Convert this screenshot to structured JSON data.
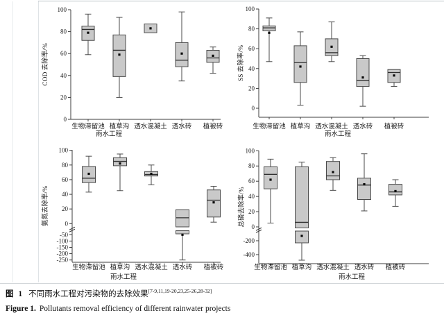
{
  "figure_caption": {
    "zh_label": "图 1",
    "zh_text": "不同雨水工程对污染物的去除效果",
    "zh_refs": "[7-9,11,19-20,23,25-26,28-32]",
    "en_label": "Figure 1.",
    "en_text": "Pollutants removal efficiency of different rainwater projects"
  },
  "colors": {
    "box_fill": "#c9c9c9",
    "box_stroke": "#4a4a4a",
    "median": "#2f2f2f",
    "mean_marker": "#0a0a0a",
    "axis": "#3c3c3c"
  },
  "chart_data": [
    {
      "id": "cod-removal",
      "type": "box",
      "ylabel": "COD 去除率/%",
      "xlabel": "雨水工程",
      "categories": [
        "生物滞留池",
        "植草沟",
        "透水混凝土",
        "透水砖",
        "植被砖"
      ],
      "yticks": [
        0,
        20,
        40,
        60,
        80,
        100
      ],
      "yticks_below_break": null,
      "ylim": [
        0,
        100
      ],
      "axis_break": false,
      "boxes": [
        {
          "category": "生物滞留池",
          "low": 59,
          "q1": 72,
          "median": 82,
          "q3": 85,
          "high": 96,
          "mean": 79
        },
        {
          "category": "植草沟",
          "low": 20,
          "q1": 39,
          "median": 63,
          "q3": 77,
          "high": 93,
          "mean": 59
        },
        {
          "category": "透水混凝土",
          "low": null,
          "q1": 79,
          "median": null,
          "q3": 87,
          "high": null,
          "mean": 83
        },
        {
          "category": "透水砖",
          "low": 35,
          "q1": 48,
          "median": 54,
          "q3": 70,
          "high": 98,
          "mean": 60
        },
        {
          "category": "植被砖",
          "low": 42,
          "q1": 52,
          "median": 56,
          "q3": 63,
          "high": 66,
          "mean": 58
        }
      ]
    },
    {
      "id": "ss-removal",
      "type": "box",
      "ylabel": "SS 去除率/%",
      "xlabel": "雨水工程",
      "categories": [
        "生物滞留池",
        "植草沟",
        "透水混凝土",
        "透水砖",
        "植被砖"
      ],
      "yticks": [
        0,
        20,
        40,
        60,
        80,
        100
      ],
      "yticks_below_break": null,
      "ylim": [
        0,
        100
      ],
      "axis_break": false,
      "boxes": [
        {
          "category": "生物滞留池",
          "low": 47,
          "q1": 78,
          "median": 81,
          "q3": 83,
          "high": 91,
          "mean": 76
        },
        {
          "category": "植草沟",
          "low": 3,
          "q1": 26,
          "median": 46,
          "q3": 63,
          "high": 77,
          "mean": 42
        },
        {
          "category": "透水混凝土",
          "low": 47,
          "q1": 53,
          "median": 56,
          "q3": 70,
          "high": 87,
          "mean": 62
        },
        {
          "category": "透水砖",
          "low": 2,
          "q1": 22,
          "median": 28,
          "q3": 50,
          "high": 53,
          "mean": 31
        },
        {
          "category": "植被砖",
          "low": 22,
          "q1": 26,
          "median": 36,
          "q3": 39,
          "high": null,
          "mean": 33
        }
      ]
    },
    {
      "id": "ammonia-nitrogen-removal",
      "type": "box",
      "ylabel": "氨氮去除率/%",
      "xlabel": "雨水工程",
      "categories": [
        "生物滞留池",
        "植草沟",
        "透水混凝土",
        "透水砖",
        "植被砖"
      ],
      "yticks": [
        0,
        20,
        40,
        60,
        80,
        100
      ],
      "yticks_below_break": [
        -50,
        -100,
        -150,
        -200,
        -250
      ],
      "ylim": [
        -250,
        100
      ],
      "axis_break": true,
      "boxes": [
        {
          "category": "生物滞留池",
          "low": 43,
          "q1": 56,
          "median": 62,
          "q3": 78,
          "high": 92,
          "mean": 68
        },
        {
          "category": "植草沟",
          "low": 45,
          "q1": 79,
          "median": 85,
          "q3": 90,
          "high": 95,
          "mean": 82
        },
        {
          "category": "透水混凝土",
          "low": 53,
          "q1": 65,
          "median": 67,
          "q3": 71,
          "high": 80,
          "mean": 68
        },
        {
          "category": "透水砖",
          "low": -250,
          "q1": -43,
          "median": 8,
          "q3": 19,
          "high": null,
          "mean": -50
        },
        {
          "category": "植被砖",
          "low": 2,
          "q1": 9,
          "median": 32,
          "q3": 46,
          "high": 51,
          "mean": 29
        }
      ]
    },
    {
      "id": "total-phosphorus-removal",
      "type": "box",
      "ylabel": "总磷去除率/%",
      "xlabel": "雨水工程",
      "categories": [
        "生物滞留池",
        "植草沟",
        "透水混凝土",
        "透水砖",
        "植被砖"
      ],
      "yticks": [
        0,
        20,
        40,
        60,
        80,
        100
      ],
      "yticks_below_break": [
        -200,
        -400
      ],
      "ylim": [
        -400,
        100
      ],
      "axis_break": true,
      "boxes": [
        {
          "category": "生物滞留池",
          "low": 5,
          "q1": 50,
          "median": 69,
          "q3": 79,
          "high": 89,
          "mean": 62
        },
        {
          "category": "植草沟",
          "low": -480,
          "q1": -230,
          "median": 6,
          "q3": 79,
          "high": 85,
          "mean": -130
        },
        {
          "category": "透水混凝土",
          "low": 48,
          "q1": 62,
          "median": 67,
          "q3": 86,
          "high": 91,
          "mean": 72
        },
        {
          "category": "透水砖",
          "low": 21,
          "q1": 36,
          "median": 55,
          "q3": 64,
          "high": 96,
          "mean": 56
        },
        {
          "category": "植被砖",
          "low": 27,
          "q1": 42,
          "median": 46,
          "q3": 56,
          "high": 62,
          "mean": 47
        }
      ]
    }
  ]
}
